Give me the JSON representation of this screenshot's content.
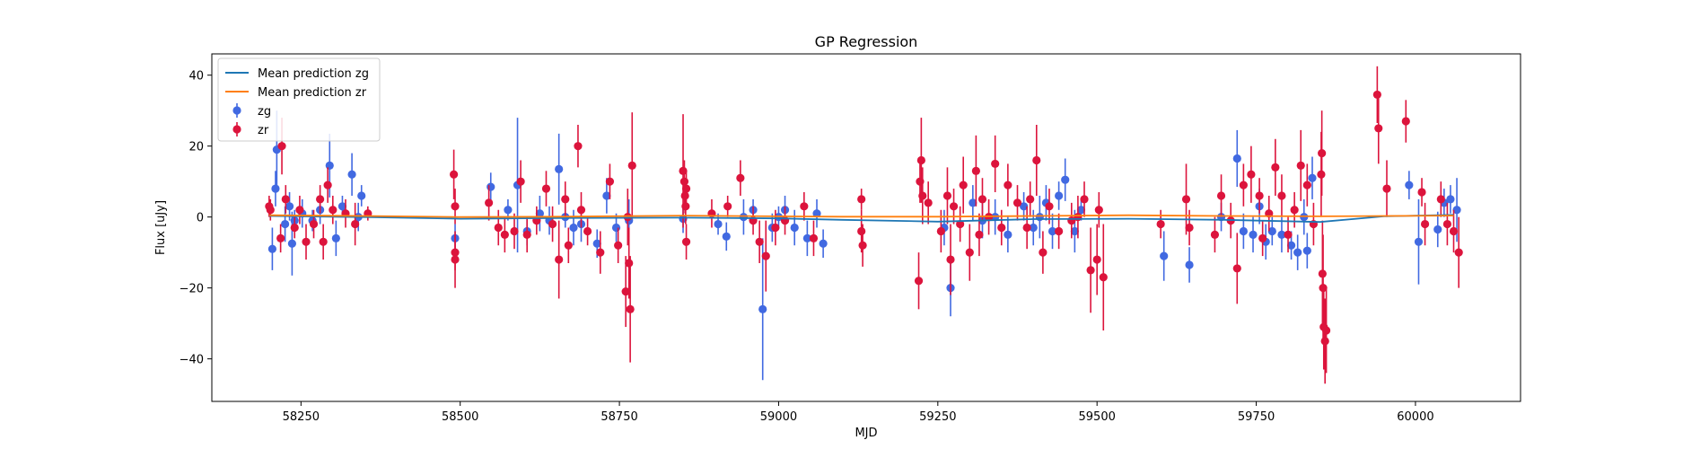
{
  "chart_data": {
    "type": "scatter",
    "title": "GP Regression",
    "xlabel": "MJD",
    "ylabel": "Flux [uJy]",
    "xlim": [
      58110,
      60165
    ],
    "ylim": [
      -52,
      46
    ],
    "xticks": [
      58250,
      58500,
      58750,
      59000,
      59250,
      59500,
      59750,
      60000
    ],
    "yticks": [
      -40,
      -20,
      0,
      20,
      40
    ],
    "legend_position": "upper-left",
    "legend": [
      {
        "label": "Mean prediction zg",
        "kind": "line",
        "color": "#1f77b4"
      },
      {
        "label": "Mean prediction zr",
        "kind": "line",
        "color": "#ff7f0e"
      },
      {
        "label": "zg",
        "kind": "errorbar",
        "color": "#4169e1"
      },
      {
        "label": "zr",
        "kind": "errorbar",
        "color": "#dc143c"
      }
    ],
    "series": [
      {
        "name": "Mean prediction zg",
        "kind": "line",
        "color": "#1f77b4",
        "x": [
          58200,
          58350,
          58500,
          58650,
          58850,
          59000,
          59100,
          59250,
          59400,
          59550,
          59700,
          59850,
          59950,
          60060
        ],
        "y": [
          0.3,
          0.0,
          -0.5,
          -0.3,
          -0.2,
          -0.4,
          -0.8,
          -1.3,
          -0.6,
          -0.5,
          -0.8,
          -1.4,
          0.2,
          0.6
        ]
      },
      {
        "name": "Mean prediction zr",
        "kind": "line",
        "color": "#ff7f0e",
        "x": [
          58200,
          58350,
          58500,
          58650,
          58850,
          59000,
          59100,
          59250,
          59400,
          59550,
          59700,
          59850,
          59950,
          60060
        ],
        "y": [
          0.5,
          0.3,
          0.0,
          0.1,
          0.4,
          0.2,
          0.1,
          0.1,
          0.3,
          0.5,
          0.3,
          0.2,
          0.3,
          0.4
        ]
      },
      {
        "name": "zg",
        "kind": "errorbar",
        "color": "#4169e1",
        "points": [
          [
            58205,
            -9,
            6
          ],
          [
            58210,
            8,
            5
          ],
          [
            58212,
            19,
            11
          ],
          [
            58225,
            -2,
            5
          ],
          [
            58232,
            3,
            4
          ],
          [
            58236,
            -7.5,
            9
          ],
          [
            58240,
            -1,
            3
          ],
          [
            58252,
            1,
            4
          ],
          [
            58268,
            -1,
            3
          ],
          [
            58280,
            2,
            4
          ],
          [
            58295,
            14.5,
            9
          ],
          [
            58305,
            -6,
            5
          ],
          [
            58315,
            3,
            3
          ],
          [
            58330,
            12,
            6
          ],
          [
            58340,
            0,
            4
          ],
          [
            58345,
            6,
            3
          ],
          [
            58492,
            -6,
            4
          ],
          [
            58548,
            8.5,
            4
          ],
          [
            58575,
            2,
            3
          ],
          [
            58590,
            9,
            19
          ],
          [
            58605,
            -4,
            4
          ],
          [
            58625,
            1,
            5
          ],
          [
            58640,
            -1,
            4
          ],
          [
            58655,
            13.5,
            10
          ],
          [
            58665,
            0,
            3
          ],
          [
            58678,
            -3,
            5
          ],
          [
            58690,
            -2,
            5
          ],
          [
            58715,
            -7.5,
            4
          ],
          [
            58730,
            6,
            5
          ],
          [
            58745,
            -3,
            4
          ],
          [
            58765,
            -1,
            6
          ],
          [
            58850,
            -0.5,
            4
          ],
          [
            58905,
            -2,
            3
          ],
          [
            58918,
            -5.5,
            4
          ],
          [
            58945,
            0,
            5
          ],
          [
            58960,
            2,
            3
          ],
          [
            58975,
            -26,
            20
          ],
          [
            58990,
            -3,
            4
          ],
          [
            59000,
            0,
            3
          ],
          [
            59010,
            2,
            4
          ],
          [
            59025,
            -3,
            5
          ],
          [
            59045,
            -6,
            5
          ],
          [
            59060,
            1,
            4
          ],
          [
            59070,
            -7.5,
            4
          ],
          [
            59260,
            -3,
            5
          ],
          [
            59270,
            -20,
            8
          ],
          [
            59305,
            4,
            5
          ],
          [
            59320,
            -1,
            5
          ],
          [
            59340,
            0,
            5
          ],
          [
            59360,
            -5,
            5
          ],
          [
            59385,
            3,
            4
          ],
          [
            59400,
            -3,
            5
          ],
          [
            59410,
            0,
            6
          ],
          [
            59420,
            4,
            5
          ],
          [
            59430,
            -4,
            5
          ],
          [
            59440,
            6,
            4
          ],
          [
            59450,
            10.5,
            6
          ],
          [
            59465,
            -4,
            6
          ],
          [
            59475,
            2,
            3
          ],
          [
            59605,
            -11,
            7
          ],
          [
            59645,
            -13.5,
            5
          ],
          [
            59695,
            0,
            4
          ],
          [
            59720,
            16.5,
            8
          ],
          [
            59730,
            -4,
            5
          ],
          [
            59745,
            -5,
            5
          ],
          [
            59755,
            3,
            5
          ],
          [
            59765,
            -7,
            5
          ],
          [
            59775,
            -4,
            4
          ],
          [
            59790,
            -5,
            5
          ],
          [
            59805,
            -8,
            4
          ],
          [
            59815,
            -10,
            5
          ],
          [
            59825,
            0,
            5
          ],
          [
            59830,
            -9.5,
            5
          ],
          [
            59838,
            11,
            6
          ],
          [
            59990,
            9,
            4
          ],
          [
            60005,
            -7,
            12
          ],
          [
            60035,
            -3.5,
            5
          ],
          [
            60045,
            4,
            4
          ],
          [
            60055,
            5,
            4
          ],
          [
            60065,
            2,
            9
          ]
        ]
      },
      {
        "name": "zr",
        "kind": "errorbar",
        "color": "#dc143c",
        "points": [
          [
            58200,
            3,
            3
          ],
          [
            58202,
            2,
            3
          ],
          [
            58218,
            -6,
            4
          ],
          [
            58220,
            20,
            8
          ],
          [
            58226,
            5,
            4
          ],
          [
            58240,
            -3,
            3
          ],
          [
            58248,
            2,
            4
          ],
          [
            58258,
            -7,
            5
          ],
          [
            58270,
            -2,
            4
          ],
          [
            58280,
            5,
            4
          ],
          [
            58285,
            -7,
            5
          ],
          [
            58292,
            9,
            5
          ],
          [
            58300,
            2,
            4
          ],
          [
            58320,
            1,
            4
          ],
          [
            58335,
            -2,
            6
          ],
          [
            58355,
            1,
            2
          ],
          [
            58490,
            12,
            7
          ],
          [
            58492,
            3,
            5
          ],
          [
            58492,
            -10,
            5
          ],
          [
            58492,
            -12,
            8
          ],
          [
            58545,
            4,
            5
          ],
          [
            58560,
            -3,
            5
          ],
          [
            58570,
            -5,
            5
          ],
          [
            58585,
            -4,
            5
          ],
          [
            58595,
            10,
            6
          ],
          [
            58605,
            -5,
            5
          ],
          [
            58620,
            -1,
            4
          ],
          [
            58635,
            8,
            5
          ],
          [
            58645,
            -2,
            5
          ],
          [
            58655,
            -12,
            11
          ],
          [
            58665,
            5,
            5
          ],
          [
            58670,
            -8,
            5
          ],
          [
            58685,
            20,
            6
          ],
          [
            58690,
            2,
            5
          ],
          [
            58700,
            -4,
            4
          ],
          [
            58720,
            -10,
            6
          ],
          [
            58735,
            10,
            5
          ],
          [
            58748,
            -8,
            5
          ],
          [
            58760,
            -21,
            10
          ],
          [
            58763,
            0,
            8
          ],
          [
            58765,
            -13,
            10
          ],
          [
            58767,
            -26,
            15
          ],
          [
            58770,
            14.5,
            15
          ],
          [
            58850,
            13,
            16
          ],
          [
            58852,
            10,
            6
          ],
          [
            58853,
            6,
            5
          ],
          [
            58854,
            3,
            5
          ],
          [
            58855,
            -7,
            5
          ],
          [
            58855,
            8,
            5
          ],
          [
            58895,
            1,
            4
          ],
          [
            58920,
            3,
            3
          ],
          [
            58940,
            11,
            5
          ],
          [
            58960,
            -1,
            4
          ],
          [
            58970,
            -7,
            6
          ],
          [
            58980,
            -11,
            10
          ],
          [
            58995,
            -3,
            5
          ],
          [
            59010,
            -1,
            4
          ],
          [
            59040,
            3,
            4
          ],
          [
            59055,
            -6,
            5
          ],
          [
            59130,
            -4,
            6
          ],
          [
            59130,
            5,
            3
          ],
          [
            59132,
            -8,
            6
          ],
          [
            59220,
            -18,
            8
          ],
          [
            59222,
            10,
            6
          ],
          [
            59224,
            16,
            12
          ],
          [
            59226,
            6,
            8
          ],
          [
            59235,
            4,
            6
          ],
          [
            59255,
            -4,
            6
          ],
          [
            59265,
            6,
            8
          ],
          [
            59270,
            -12,
            10
          ],
          [
            59275,
            3,
            5
          ],
          [
            59285,
            -2,
            5
          ],
          [
            59290,
            9,
            8
          ],
          [
            59300,
            -10,
            8
          ],
          [
            59310,
            13,
            10
          ],
          [
            59315,
            -5,
            6
          ],
          [
            59320,
            5,
            6
          ],
          [
            59330,
            0,
            5
          ],
          [
            59340,
            15,
            8
          ],
          [
            59350,
            -3,
            5
          ],
          [
            59360,
            9,
            6
          ],
          [
            59375,
            4,
            5
          ],
          [
            59390,
            -3,
            6
          ],
          [
            59395,
            5,
            5
          ],
          [
            59405,
            16,
            10
          ],
          [
            59415,
            -10,
            6
          ],
          [
            59425,
            3,
            5
          ],
          [
            59440,
            -4,
            5
          ],
          [
            59460,
            -1,
            5
          ],
          [
            59470,
            0,
            6
          ],
          [
            59480,
            5,
            5
          ],
          [
            59490,
            -15,
            12
          ],
          [
            59500,
            -12,
            10
          ],
          [
            59503,
            2,
            5
          ],
          [
            59510,
            -17,
            15
          ],
          [
            59600,
            -2,
            4
          ],
          [
            59640,
            5,
            10
          ],
          [
            59645,
            -3,
            5
          ],
          [
            59685,
            -5,
            5
          ],
          [
            59695,
            6,
            6
          ],
          [
            59710,
            -1,
            5
          ],
          [
            59720,
            -14.5,
            10
          ],
          [
            59730,
            9,
            6
          ],
          [
            59742,
            12,
            8
          ],
          [
            59755,
            6,
            5
          ],
          [
            59760,
            -6,
            5
          ],
          [
            59770,
            1,
            5
          ],
          [
            59780,
            14,
            8
          ],
          [
            59790,
            6,
            6
          ],
          [
            59800,
            -5,
            5
          ],
          [
            59810,
            2,
            5
          ],
          [
            59820,
            14.5,
            10
          ],
          [
            59830,
            9,
            6
          ],
          [
            59840,
            -2,
            6
          ],
          [
            59852,
            12,
            12
          ],
          [
            59853,
            18,
            12
          ],
          [
            59854,
            -16,
            15
          ],
          [
            59855,
            -20,
            15
          ],
          [
            59856,
            -31,
            12
          ],
          [
            59858,
            -35,
            12
          ],
          [
            59860,
            -32,
            12
          ],
          [
            59940,
            34.5,
            8
          ],
          [
            59942,
            25,
            10
          ],
          [
            59955,
            8,
            8
          ],
          [
            59985,
            27,
            6
          ],
          [
            60010,
            7,
            4
          ],
          [
            60015,
            -2,
            6
          ],
          [
            60040,
            5,
            5
          ],
          [
            60050,
            -2,
            6
          ],
          [
            60060,
            -4,
            6
          ],
          [
            60068,
            -10,
            10
          ]
        ]
      }
    ]
  }
}
